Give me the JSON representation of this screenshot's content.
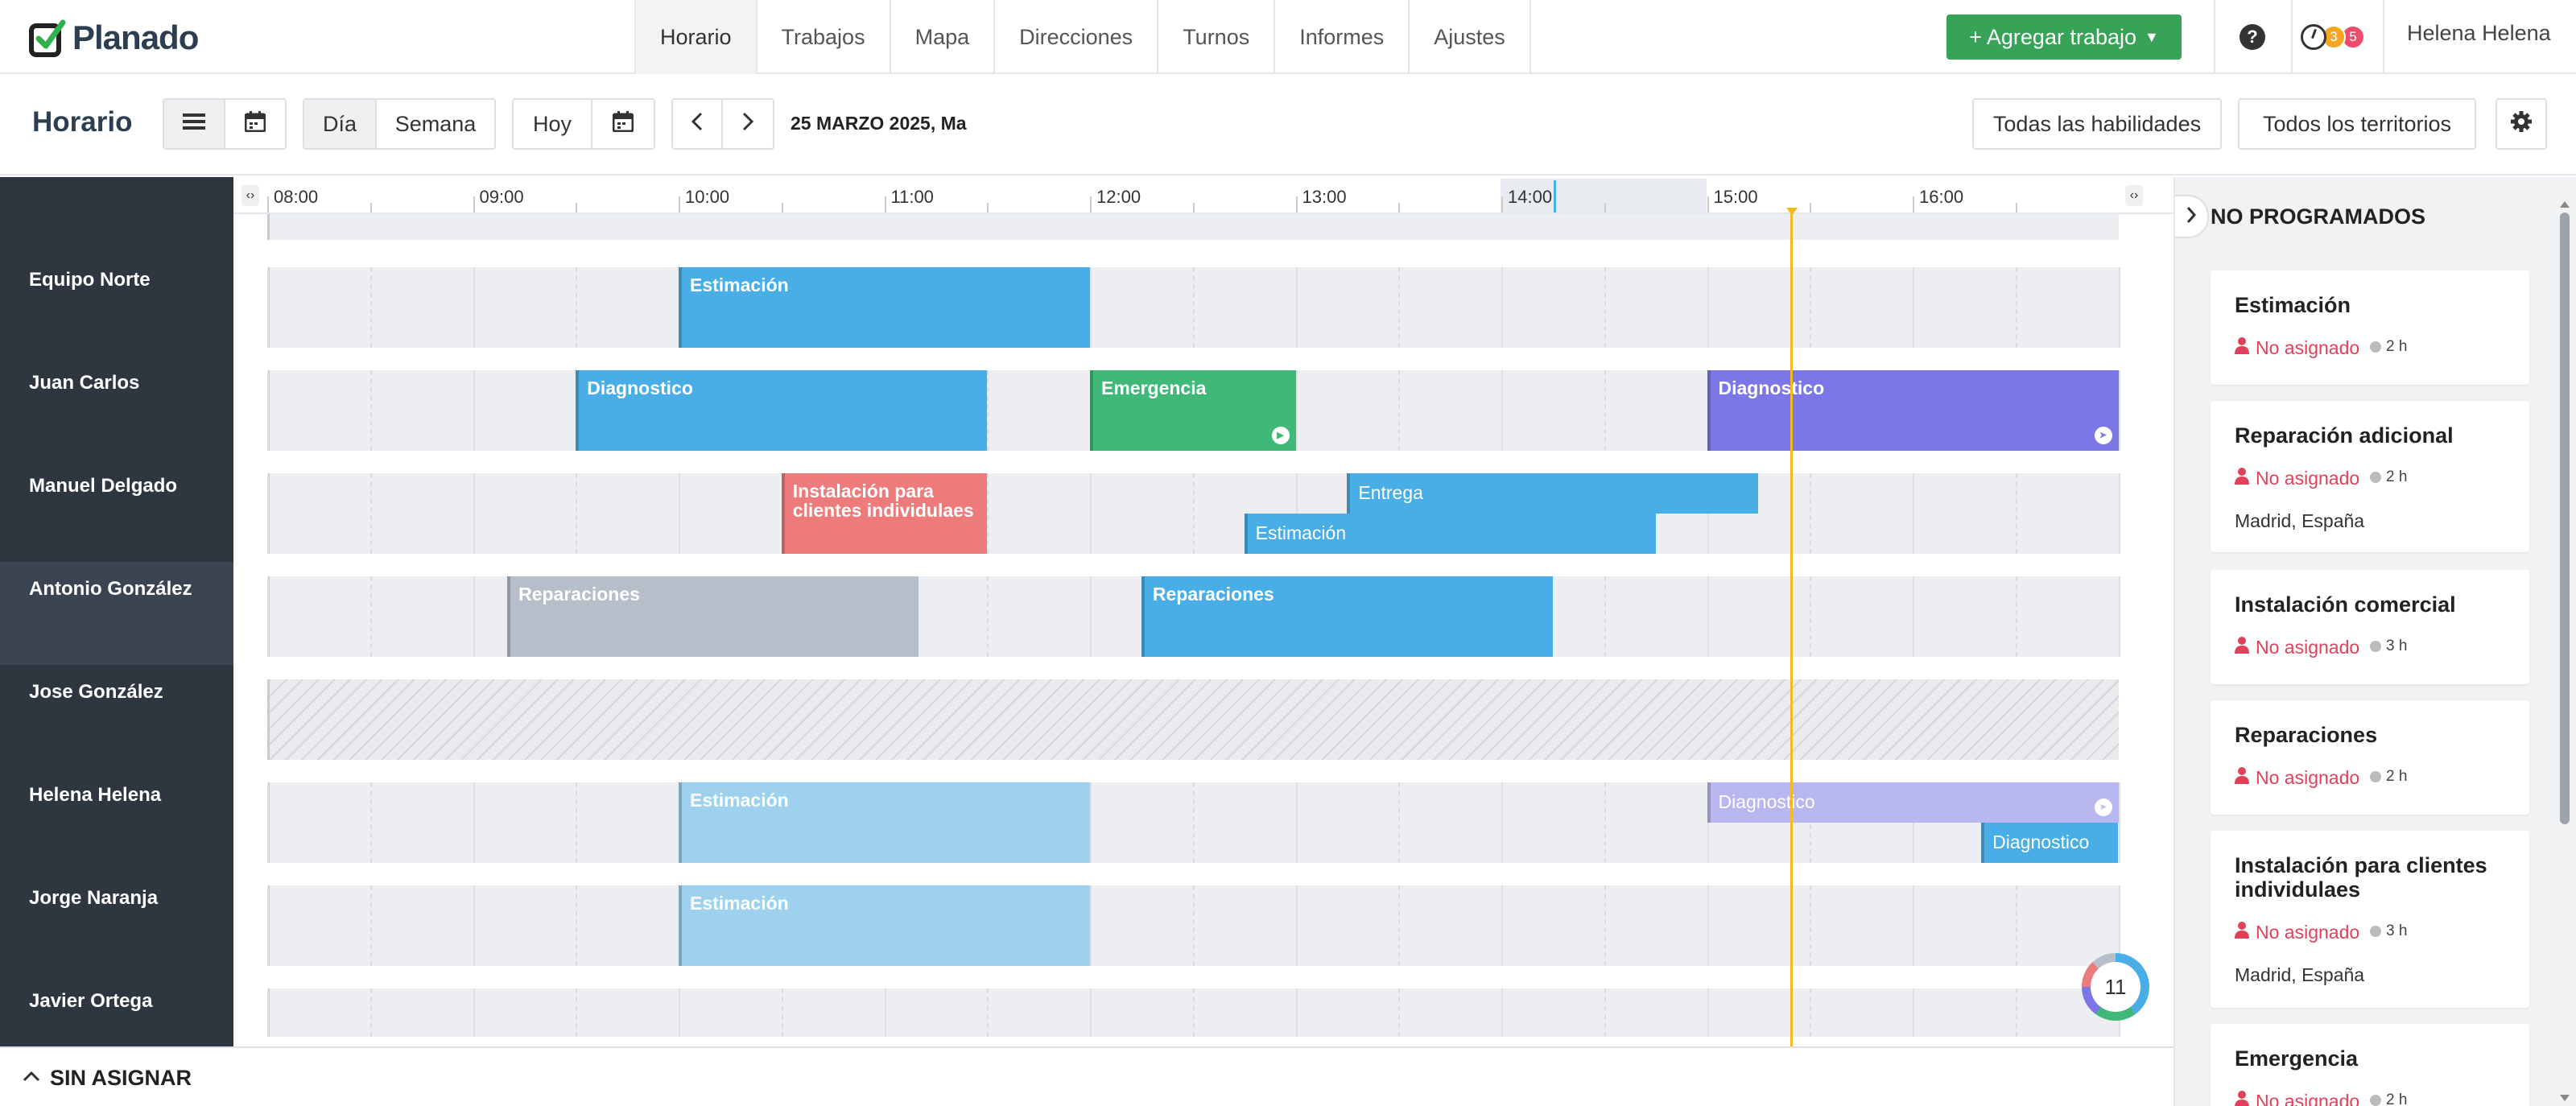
{
  "app": {
    "brand": "Planado"
  },
  "nav": {
    "tabs": [
      {
        "label": "Horario",
        "active": true
      },
      {
        "label": "Trabajos"
      },
      {
        "label": "Mapa"
      },
      {
        "label": "Direcciones"
      },
      {
        "label": "Turnos"
      },
      {
        "label": "Informes"
      },
      {
        "label": "Ajustes"
      }
    ],
    "add_job_label": "+ Agregar trabajo",
    "help": "?",
    "notif_counts": [
      "3",
      "5"
    ],
    "user": "Helena Helena"
  },
  "toolbar": {
    "title": "Horario",
    "view_day": "Día",
    "view_week": "Semana",
    "today": "Hoy",
    "date": "25 MARZO 2025, Ma",
    "skills_filter": "Todas las habilidades",
    "territories_filter": "Todos los territorios"
  },
  "timeline": {
    "hours": [
      "08:00",
      "09:00",
      "10:00",
      "11:00",
      "12:00",
      "13:00",
      "14:00",
      "15:00",
      "16:00"
    ],
    "current_time_marker": "15:25",
    "badge_count": "11"
  },
  "resources": [
    "Equipo Norte",
    "Juan Carlos",
    "Manuel Delgado",
    "Antonio González",
    "Jose González",
    "Helena Helena",
    "Jorge Naranja",
    "Javier Ortega"
  ],
  "jobs": [
    {
      "resource": "Equipo Norte",
      "title": "Estimación",
      "start": "10:00",
      "end": "12:00",
      "color": "#4aaee6"
    },
    {
      "resource": "Juan Carlos",
      "title": "Diagnostico",
      "start": "09:30",
      "end": "11:30",
      "color": "#4aaee6"
    },
    {
      "resource": "Juan Carlos",
      "title": "Emergencia",
      "start": "12:00",
      "end": "13:00",
      "color": "#3fb878"
    },
    {
      "resource": "Juan Carlos",
      "title": "Diagnostico",
      "start": "15:00",
      "end": "17:00",
      "color": "#7b77e6"
    },
    {
      "resource": "Manuel Delgado",
      "title": "Instalación para clientes individulaes",
      "start": "10:30",
      "end": "11:30",
      "color": "#ee7b7b"
    },
    {
      "resource": "Manuel Delgado",
      "title": "Entrega",
      "start": "13:15",
      "end": "15:15",
      "color": "#4aaee6"
    },
    {
      "resource": "Manuel Delgado",
      "title": "Estimación",
      "start": "12:45",
      "end": "14:45",
      "color": "#4aaee6"
    },
    {
      "resource": "Antonio González",
      "title": "Reparaciones",
      "start": "09:10",
      "end": "11:10",
      "color": "#b5bec9"
    },
    {
      "resource": "Antonio González",
      "title": "Reparaciones",
      "start": "12:15",
      "end": "14:15",
      "color": "#4aaee6"
    },
    {
      "resource": "Helena Helena",
      "title": "Estimación",
      "start": "10:00",
      "end": "12:00",
      "color": "#9dd1ee"
    },
    {
      "resource": "Helena Helena",
      "title": "Diagnostico",
      "start": "15:00",
      "end": "17:00",
      "color": "#b9b7f0"
    },
    {
      "resource": "Helena Helena",
      "title": "Diagnostico",
      "start": "16:20",
      "end": "17:00",
      "color": "#4aaee6"
    },
    {
      "resource": "Jorge Naranja",
      "title": "Estimación",
      "start": "10:00",
      "end": "12:00",
      "color": "#9dd1ee"
    }
  ],
  "unscheduled": {
    "title": "NO PROGRAMADOS",
    "cards": [
      {
        "title": "Estimación",
        "assignee": "No asignado",
        "duration": "2 h"
      },
      {
        "title": "Reparación adicional",
        "assignee": "No asignado",
        "duration": "2 h",
        "location": "Madrid, España"
      },
      {
        "title": "Instalación comercial",
        "assignee": "No asignado",
        "duration": "3 h"
      },
      {
        "title": "Reparaciones",
        "assignee": "No asignado",
        "duration": "2 h"
      },
      {
        "title": "Instalación para clientes individulaes",
        "assignee": "No asignado",
        "duration": "3 h",
        "location": "Madrid, España"
      },
      {
        "title": "Emergencia",
        "assignee": "No asignado",
        "duration": "2 h"
      }
    ]
  },
  "bottom": {
    "label": "SIN ASIGNAR"
  }
}
